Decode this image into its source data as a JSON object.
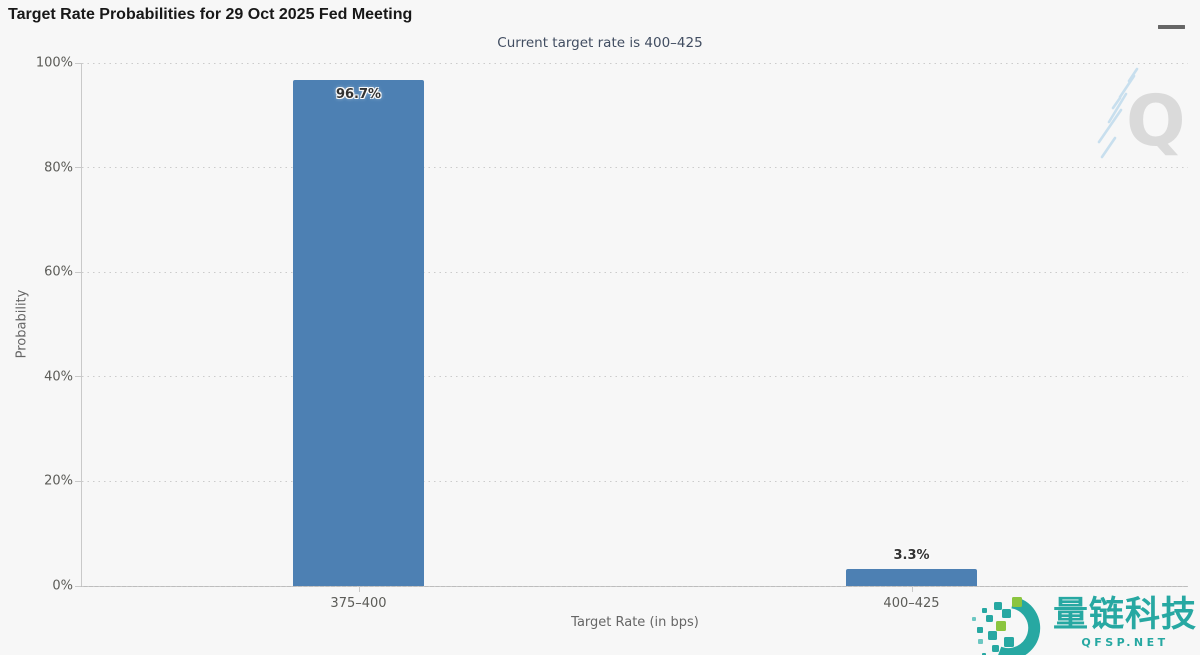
{
  "chart_data": {
    "type": "bar",
    "title": "Target Rate Probabilities for 29 Oct 2025 Fed Meeting",
    "subtitle": "Current target rate is 400–425",
    "categories": [
      "375–400",
      "400–425"
    ],
    "values": [
      96.7,
      3.3
    ],
    "value_labels": [
      "96.7%",
      "3.3%"
    ],
    "xlabel": "Target Rate (in bps)",
    "ylabel": "Probability",
    "ylim": [
      0,
      100
    ],
    "yticks": [
      {
        "value": 0,
        "label": "0%"
      },
      {
        "value": 20,
        "label": "20%"
      },
      {
        "value": 40,
        "label": "40%"
      },
      {
        "value": 60,
        "label": "60%"
      },
      {
        "value": 80,
        "label": "80%"
      },
      {
        "value": 100,
        "label": "100%"
      }
    ],
    "grid": "dotted-horizontal",
    "legend": "none",
    "bar_color": "#4d80b3"
  },
  "toolbar": {
    "menu_icon": "hamburger-menu-icon"
  },
  "watermark": {
    "letter": "Q"
  },
  "logo": {
    "company": "量链科技",
    "domain": "QFSP.NET",
    "teal": "#27a8a2",
    "green": "#8bc53f"
  },
  "colors": {
    "background": "#f7f7f7",
    "grid": "#cbcbcb",
    "axis": "#c9c9c9",
    "tick_label": "#5c5c58",
    "axis_title": "#666666",
    "title": "#181818",
    "subtitle": "#414d61"
  }
}
